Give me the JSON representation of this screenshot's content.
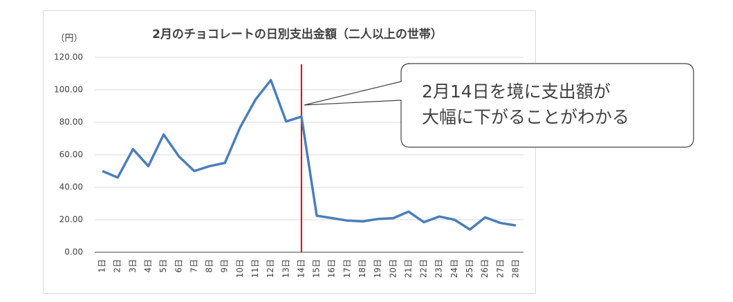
{
  "chart_data": {
    "type": "line",
    "title": "2月のチョコレートの日別支出金額（二人以上の世帯）",
    "y_label": "（円）",
    "categories": [
      "1日",
      "2日",
      "3日",
      "4日",
      "5日",
      "6日",
      "7日",
      "8日",
      "9日",
      "10日",
      "11日",
      "12日",
      "13日",
      "14日",
      "15日",
      "16日",
      "17日",
      "18日",
      "19日",
      "20日",
      "21日",
      "22日",
      "23日",
      "24日",
      "25日",
      "26日",
      "27日",
      "28日"
    ],
    "series": [
      {
        "name": "支出金額",
        "color": "#4a7ebb",
        "values": [
          50,
          46,
          63.5,
          53,
          72.5,
          59,
          50,
          53,
          55,
          77,
          94,
          106,
          80.5,
          83.5,
          22.5,
          21,
          19.5,
          19,
          20.5,
          21,
          25,
          18.5,
          22,
          20,
          14,
          21.5,
          18,
          16.5
        ]
      }
    ],
    "ylim": [
      0,
      120
    ],
    "yticks": [
      {
        "value": 0,
        "label": "0.00"
      },
      {
        "value": 20,
        "label": "20.00"
      },
      {
        "value": 40,
        "label": "40.00"
      },
      {
        "value": 60,
        "label": "60.00"
      },
      {
        "value": 80,
        "label": "80.00"
      },
      {
        "value": 100,
        "label": "100.00"
      },
      {
        "value": 120,
        "label": "120.00"
      }
    ],
    "grid": true,
    "reference_line": {
      "category": "14日",
      "color": "#e00000"
    },
    "annotation": [
      "2月14日を境に支出額が",
      "大幅に下がることがわかる"
    ]
  }
}
